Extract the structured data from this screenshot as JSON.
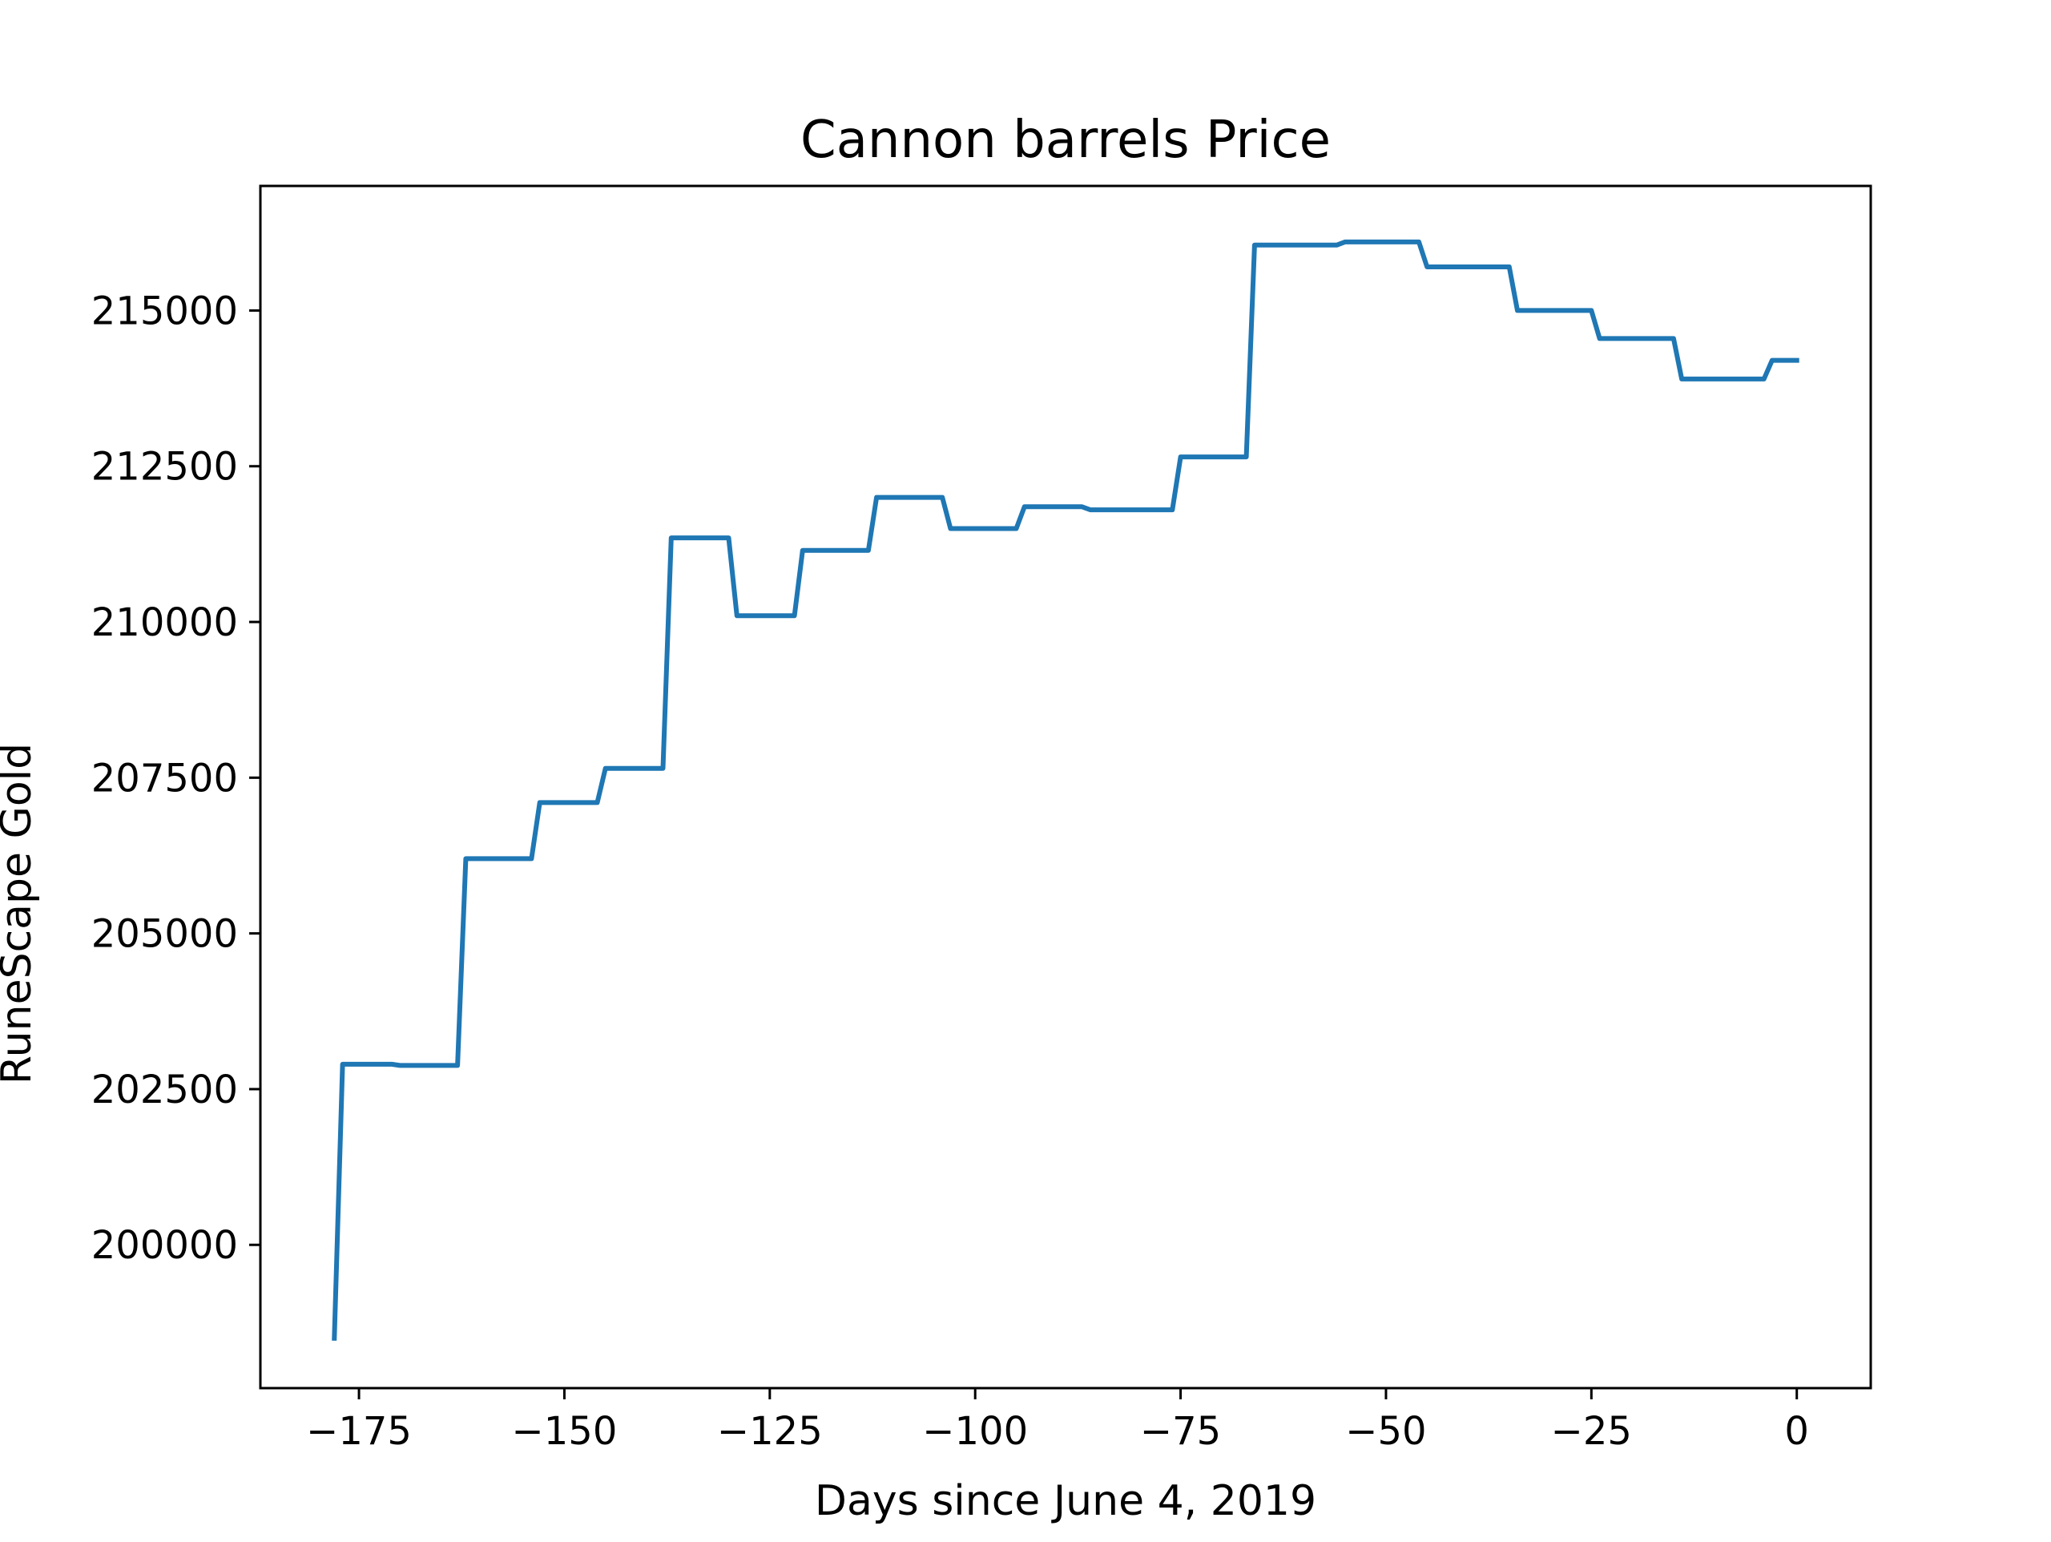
{
  "chart_data": {
    "type": "line",
    "title": "Cannon barrels Price",
    "xlabel": "Days since June 4, 2019",
    "ylabel": "RuneScape Gold",
    "xlim": [
      -187,
      9
    ],
    "ylim": [
      197700,
      217000
    ],
    "xticks": [
      -175,
      -150,
      -125,
      -100,
      -75,
      -50,
      -25,
      0
    ],
    "xtick_labels": [
      "−175",
      "−150",
      "−125",
      "−100",
      "−75",
      "−50",
      "−25",
      "0"
    ],
    "yticks": [
      200000,
      202500,
      205000,
      207500,
      210000,
      212500,
      215000
    ],
    "ytick_labels": [
      "200000",
      "202500",
      "205000",
      "207500",
      "210000",
      "212500",
      "215000"
    ],
    "grid": false,
    "legend": "none",
    "series": [
      {
        "color": "#1f77b4",
        "x": [
          -178,
          -177,
          -171,
          -170,
          -163,
          -162,
          -154,
          -153,
          -146,
          -145,
          -138,
          -137,
          -130,
          -129,
          -122,
          -121,
          -113,
          -112,
          -104,
          -103,
          -95,
          -94,
          -87,
          -86,
          -76,
          -75,
          -67,
          -66,
          -56,
          -55,
          -46,
          -45,
          -35,
          -34,
          -25,
          -24,
          -15,
          -14,
          -4,
          -3,
          0
        ],
        "values": [
          198500,
          202900,
          202900,
          202880,
          202880,
          206200,
          206200,
          207100,
          207100,
          207650,
          207650,
          211350,
          211350,
          210100,
          210100,
          211150,
          211150,
          212000,
          212000,
          211500,
          211500,
          211850,
          211850,
          211800,
          211800,
          212650,
          212650,
          216050,
          216050,
          216100,
          216100,
          215700,
          215700,
          215000,
          215000,
          214550,
          214550,
          213900,
          213900,
          214200,
          214200
        ]
      }
    ]
  }
}
